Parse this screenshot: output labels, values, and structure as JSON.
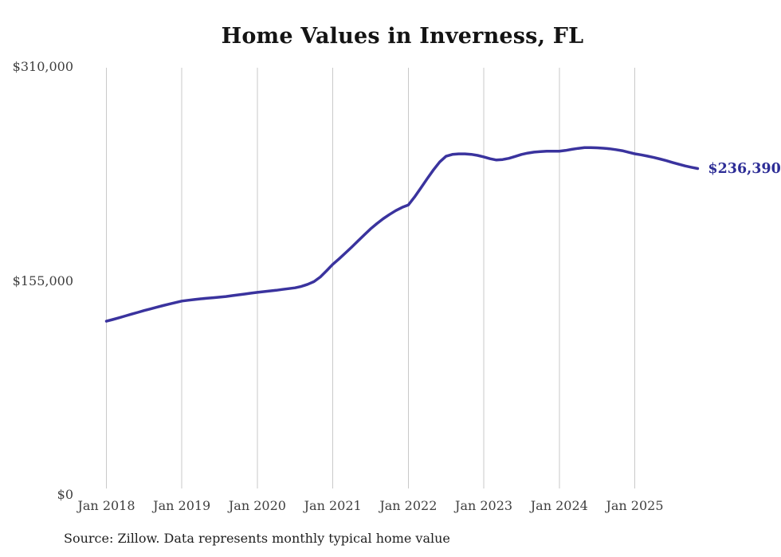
{
  "page": {
    "background": "#ffffff"
  },
  "chart_data": {
    "type": "line",
    "title": "Home Values in Inverness, FL",
    "source_note": "Source: Zillow. Data represents monthly typical home value",
    "end_label": "$236,390",
    "latest_value": 236390,
    "xlabel": "",
    "ylabel": "",
    "ylim": [
      0,
      310000
    ],
    "grid": "vertical-year-gridlines-only",
    "legend": "none",
    "gridline_color": "#c9c9c9",
    "text_color": "#3f3f3f",
    "x_tick_labels": [
      "Jan 2018",
      "Jan 2019",
      "Jan 2020",
      "Jan 2021",
      "Jan 2022",
      "Jan 2023",
      "Jan 2024",
      "Jan 2025"
    ],
    "y_ticks": [
      {
        "label": "$0",
        "value": 0
      },
      {
        "label": "$155,000",
        "value": 155000
      },
      {
        "label": "$310,000",
        "value": 310000
      }
    ],
    "series": [
      {
        "name": "Monthly typical home value",
        "color": "#3a339e",
        "x": [
          "2018-01",
          "2018-02",
          "2018-03",
          "2018-04",
          "2018-05",
          "2018-06",
          "2018-07",
          "2018-08",
          "2018-09",
          "2018-10",
          "2018-11",
          "2018-12",
          "2019-01",
          "2019-02",
          "2019-03",
          "2019-04",
          "2019-05",
          "2019-06",
          "2019-07",
          "2019-08",
          "2019-09",
          "2019-10",
          "2019-11",
          "2019-12",
          "2020-01",
          "2020-02",
          "2020-03",
          "2020-04",
          "2020-05",
          "2020-06",
          "2020-07",
          "2020-08",
          "2020-09",
          "2020-10",
          "2020-11",
          "2020-12",
          "2021-01",
          "2021-02",
          "2021-03",
          "2021-04",
          "2021-05",
          "2021-06",
          "2021-07",
          "2021-08",
          "2021-09",
          "2021-10",
          "2021-11",
          "2021-12",
          "2022-01",
          "2022-02",
          "2022-03",
          "2022-04",
          "2022-05",
          "2022-06",
          "2022-07",
          "2022-08",
          "2022-09",
          "2022-10",
          "2022-11",
          "2022-12",
          "2023-01",
          "2023-02",
          "2023-03",
          "2023-04",
          "2023-05",
          "2023-06",
          "2023-07",
          "2023-08",
          "2023-09",
          "2023-10",
          "2023-11",
          "2023-12",
          "2024-01",
          "2024-02",
          "2024-03",
          "2024-04",
          "2024-05",
          "2024-06",
          "2024-07",
          "2024-08",
          "2024-09",
          "2024-10",
          "2024-11",
          "2024-12",
          "2025-01",
          "2025-02",
          "2025-03",
          "2025-04",
          "2025-05",
          "2025-06",
          "2025-07",
          "2025-08",
          "2025-09",
          "2025-10",
          "2025-11"
        ],
        "values": [
          125800,
          127000,
          128300,
          129600,
          130900,
          132200,
          133500,
          134700,
          135900,
          137100,
          138200,
          139300,
          140400,
          141000,
          141500,
          142000,
          142400,
          142800,
          143200,
          143700,
          144300,
          144900,
          145500,
          146100,
          146700,
          147200,
          147700,
          148200,
          148800,
          149400,
          150000,
          151000,
          152500,
          154500,
          157800,
          162300,
          167000,
          171000,
          175200,
          179500,
          183900,
          188300,
          192700,
          196500,
          200000,
          203100,
          205900,
          208200,
          210000,
          215800,
          222300,
          229000,
          235400,
          241200,
          245300,
          246600,
          247000,
          247000,
          246700,
          245900,
          244800,
          243500,
          242600,
          242900,
          243800,
          245200,
          246600,
          247600,
          248300,
          248700,
          248900,
          248900,
          249000,
          249500,
          250300,
          251000,
          251500,
          251600,
          251400,
          251100,
          250700,
          250100,
          249300,
          248200,
          247100,
          246300,
          245400,
          244400,
          243300,
          242100,
          240800,
          239500,
          238300,
          237300,
          236390
        ]
      }
    ]
  }
}
